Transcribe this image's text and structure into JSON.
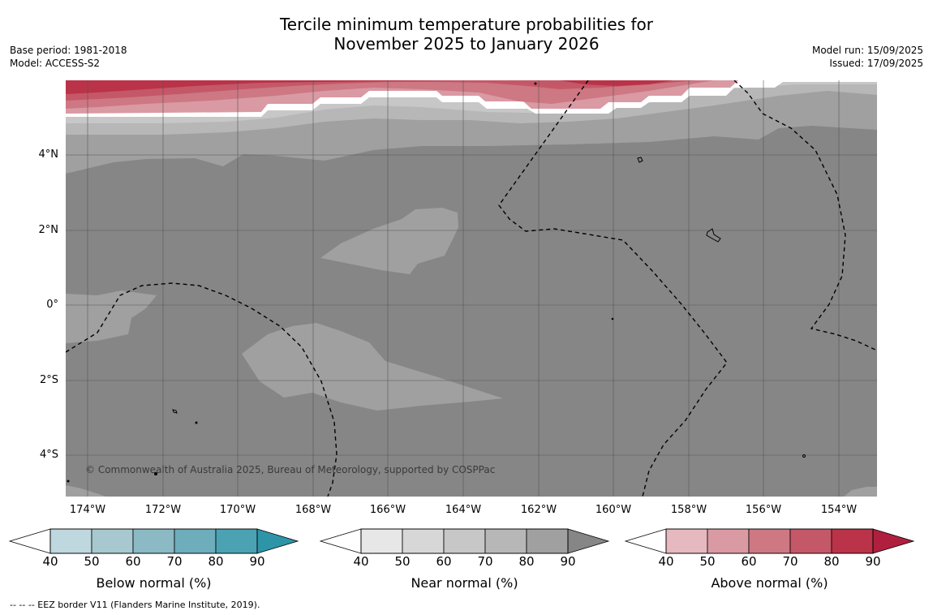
{
  "title": {
    "line1": "Tercile minimum temperature probabilities for",
    "line2": "November 2025 to January 2026"
  },
  "meta_left": {
    "base_period": "Base period: 1981-2018",
    "model": "Model: ACCESS-S2"
  },
  "meta_right": {
    "model_run": "Model run: 15/09/2025",
    "issued": "Issued: 17/09/2025"
  },
  "map": {
    "lat_labels": [
      "4°N",
      "2°N",
      "0°",
      "2°S",
      "4°S"
    ],
    "lon_labels": [
      "174°W",
      "172°W",
      "170°W",
      "168°W",
      "166°W",
      "164°W",
      "162°W",
      "160°W",
      "158°W",
      "156°W",
      "154°W"
    ],
    "copyright": "© Commonwealth of Australia 2025, Bureau of Meteorology, supported by COSPPac",
    "colors": {
      "near_90": "#868686",
      "near_80": "#a0a0a0",
      "near_70": "#b7b7b7",
      "near_60": "#c7c7c7",
      "above_50": "#d99aa3",
      "above_60": "#cd7883",
      "above_70": "#c45868",
      "above_80": "#ba3348"
    }
  },
  "colorbars": [
    {
      "label": "Below normal (%)",
      "ticks": [
        "40",
        "50",
        "60",
        "70",
        "80",
        "90"
      ],
      "colors": [
        "#bfd7de",
        "#a6c8ce",
        "#8bb9c4",
        "#6eadbb",
        "#4aa2b3",
        "#2e95a8"
      ]
    },
    {
      "label": "Near normal (%)",
      "ticks": [
        "40",
        "50",
        "60",
        "70",
        "80",
        "90"
      ],
      "colors": [
        "#e7e7e7",
        "#d7d7d7",
        "#c7c7c7",
        "#b7b7b7",
        "#a0a0a0",
        "#868686"
      ]
    },
    {
      "label": "Above normal (%)",
      "ticks": [
        "40",
        "50",
        "60",
        "70",
        "80",
        "90"
      ],
      "colors": [
        "#e5b9bf",
        "#d99aa3",
        "#cd7883",
        "#c45868",
        "#ba3348",
        "#b0203e"
      ]
    }
  ],
  "footnote": "-- -- -- EEZ border V11 (Flanders Marine Institute, 2019)."
}
